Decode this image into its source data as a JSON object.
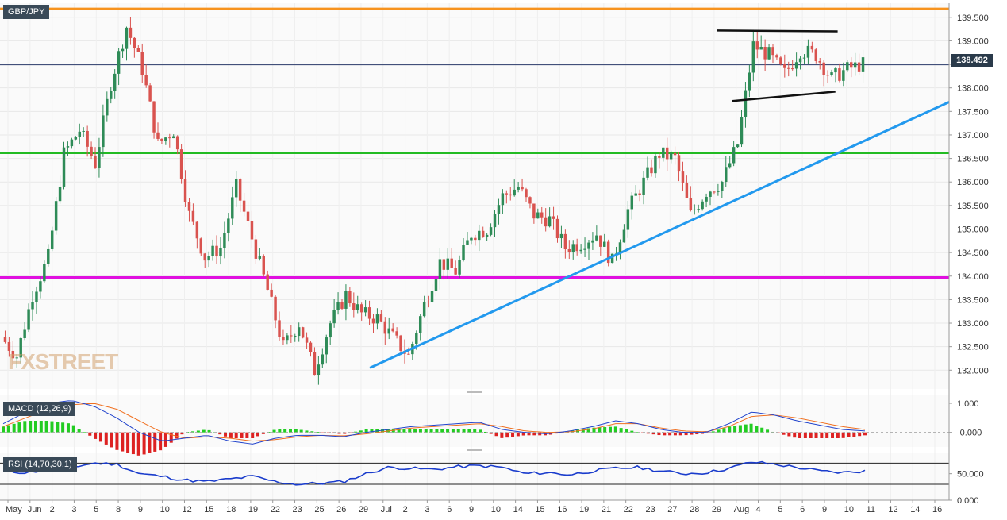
{
  "symbol": "GBP/JPY",
  "watermark": "FXSTREET",
  "last_price": "138.492",
  "chart_data": {
    "type": "candlestick",
    "title": "GBP/JPY",
    "ylim": [
      131.6,
      139.8
    ],
    "y_ticks": [
      "139.500",
      "139.000",
      "138.500",
      "138.000",
      "137.500",
      "137.000",
      "136.500",
      "136.000",
      "135.500",
      "135.000",
      "134.500",
      "134.000",
      "133.500",
      "133.000",
      "132.500",
      "132.000"
    ],
    "x_labels": [
      "May",
      "Jun",
      "2",
      "3",
      "5",
      "8",
      "9",
      "10",
      "12",
      "15",
      "18",
      "19",
      "22",
      "23",
      "25",
      "26",
      "29",
      "Jul",
      "2",
      "3",
      "6",
      "9",
      "10",
      "14",
      "15",
      "16",
      "19",
      "21",
      "22",
      "23",
      "27",
      "28",
      "29",
      "Aug",
      "4",
      "5",
      "6",
      "9",
      "10",
      "11",
      "12",
      "14",
      "16"
    ],
    "horizontal_levels": [
      {
        "value": 139.68,
        "color": "#f7931e"
      },
      {
        "value": 136.62,
        "color": "#22bb22"
      },
      {
        "value": 133.97,
        "color": "#e010e0"
      },
      {
        "value": 138.49,
        "color": "#2a3a6a"
      }
    ],
    "price_path": [
      132.7,
      132.3,
      133.6,
      134.4,
      136.6,
      137.1,
      136.4,
      138.1,
      139.3,
      138.4,
      136.8,
      137.1,
      135.3,
      134.4,
      134.6,
      135.9,
      134.8,
      133.7,
      132.5,
      133.0,
      132.0,
      133.0,
      133.6,
      133.2,
      133.1,
      132.7,
      132.3,
      133.4,
      134.3,
      134.1,
      134.9,
      135.0,
      135.7,
      135.9,
      135.3,
      135.2,
      134.6,
      134.7,
      134.9,
      134.3,
      135.4,
      136.0,
      136.6,
      136.5,
      135.3,
      135.8,
      136.0,
      136.8,
      138.9,
      138.7,
      138.3,
      138.8,
      138.7,
      138.2,
      138.4,
      138.5
    ],
    "trendlines": [
      {
        "name": "support",
        "color": "#2299ee",
        "points": [
          [
            0.3898,
            132.05
          ],
          [
            1.0,
            137.7
          ]
        ]
      },
      {
        "name": "pennant-top",
        "color": "#111111",
        "points": [
          [
            0.7553,
            139.22
          ],
          [
            0.8826,
            139.2
          ]
        ]
      },
      {
        "name": "pennant-bottom",
        "color": "#111111",
        "points": [
          [
            0.7714,
            137.72
          ],
          [
            0.8802,
            137.92
          ]
        ]
      }
    ],
    "indicators": [
      {
        "name": "MACD (12,26,9)",
        "ylim": [
          -0.5,
          1.3
        ],
        "y_ticks": [
          "1.000",
          "-0.000"
        ],
        "macd": [
          0.3,
          0.7,
          1.0,
          1.1,
          0.9,
          0.5,
          0.0,
          -0.3,
          -0.2,
          -0.1,
          -0.3,
          -0.4,
          -0.2,
          -0.1,
          -0.1,
          -0.15,
          0.0,
          0.1,
          0.2,
          0.25,
          0.3,
          0.35,
          0.1,
          0.0,
          -0.05,
          0.05,
          0.2,
          0.4,
          0.3,
          0.1,
          0.0,
          0.0,
          0.3,
          0.7,
          0.6,
          0.4,
          0.25,
          0.1,
          0.05
        ],
        "signal": [
          0.2,
          0.5,
          0.8,
          0.95,
          1.0,
          0.8,
          0.4,
          0.0,
          -0.2,
          -0.15,
          -0.2,
          -0.3,
          -0.25,
          -0.15,
          -0.1,
          -0.12,
          -0.05,
          0.05,
          0.15,
          0.2,
          0.25,
          0.3,
          0.2,
          0.05,
          0.0,
          0.02,
          0.12,
          0.3,
          0.3,
          0.15,
          0.05,
          0.02,
          0.2,
          0.55,
          0.6,
          0.5,
          0.35,
          0.2,
          0.1
        ]
      },
      {
        "name": "RSI (14,70,30,1)",
        "ylim": [
          0,
          90
        ],
        "y_ticks": [
          "50.000",
          "0.000"
        ],
        "levels": [
          70,
          30
        ],
        "values": [
          55,
          52,
          58,
          62,
          70,
          68,
          50,
          45,
          38,
          35,
          40,
          45,
          35,
          30,
          32,
          35,
          50,
          62,
          60,
          58,
          63,
          65,
          62,
          50,
          52,
          48,
          55,
          60,
          62,
          55,
          50,
          52,
          60,
          72,
          68,
          62,
          55,
          52,
          55
        ]
      }
    ]
  }
}
